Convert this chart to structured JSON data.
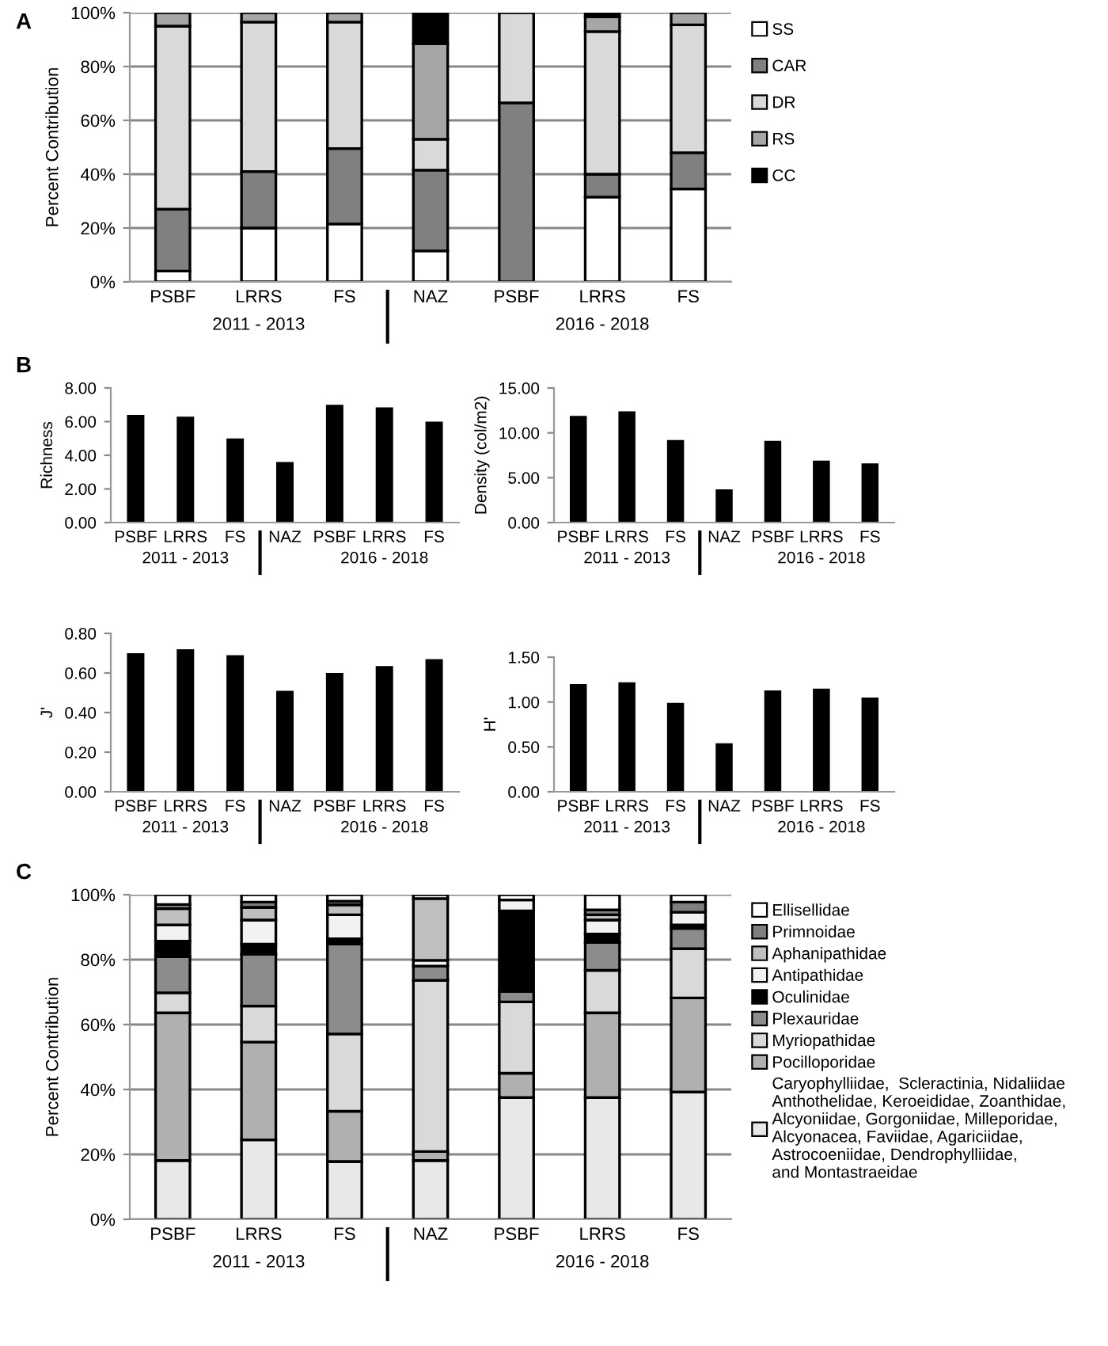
{
  "chart_data": [
    {
      "type": "bar",
      "title": "A",
      "ylabel": "Percent Contribution",
      "stacked": true,
      "grid": "y",
      "legend": "right",
      "categories": [
        "PSBF",
        "LRRS",
        "FS",
        "NAZ",
        "PSBF",
        "LRRS",
        "FS"
      ],
      "annotations": [
        "2011 - 2013",
        "2016 - 2018"
      ],
      "ylim": [
        0,
        100
      ],
      "yticks": [
        {
          "value": 0,
          "label": "0%"
        },
        {
          "value": 20,
          "label": "20%"
        },
        {
          "value": 40,
          "label": "40%"
        },
        {
          "value": 60,
          "label": "60%"
        },
        {
          "value": 80,
          "label": "80%"
        },
        {
          "value": 100,
          "label": "100%"
        }
      ],
      "series": [
        {
          "name": "SS",
          "color": "#ffffff",
          "values": [
            4,
            20,
            21.5,
            11.5,
            null,
            31.5,
            34.5
          ]
        },
        {
          "name": "CAR",
          "color": "#808080",
          "values": [
            23,
            21,
            28,
            30,
            66.5,
            8.5,
            13.5
          ]
        },
        {
          "name": "DR",
          "color": "#d9d9d9",
          "values": [
            68,
            55.5,
            47,
            11.5,
            33.5,
            53,
            47.5
          ]
        },
        {
          "name": "RS",
          "color": "#a6a6a6",
          "values": [
            5,
            3.5,
            3.5,
            35.5,
            null,
            5.5,
            4.5
          ]
        },
        {
          "name": "CC",
          "color": "#000000",
          "values": [
            null,
            null,
            null,
            11.5,
            null,
            1.5,
            null
          ]
        }
      ]
    },
    {
      "type": "bar",
      "title": "B",
      "ylabel": "Richness",
      "categories": [
        "PSBF",
        "LRRS",
        "FS",
        "NAZ",
        "PSBF",
        "LRRS",
        "FS"
      ],
      "annotations": [
        "2011 - 2013",
        "2016 - 2018"
      ],
      "ylim": [
        0,
        8
      ],
      "yticks": [
        {
          "value": 0,
          "label": "0.00"
        },
        {
          "value": 2,
          "label": "2.00"
        },
        {
          "value": 4,
          "label": "4.00"
        },
        {
          "value": 6,
          "label": "6.00"
        },
        {
          "value": 8,
          "label": "8.00"
        }
      ],
      "color": "#000000",
      "values": [
        6.4,
        6.3,
        5.0,
        3.6,
        7.0,
        6.85,
        6.0
      ]
    },
    {
      "type": "bar",
      "ylabel": "Density (col/m2)",
      "categories": [
        "PSBF",
        "LRRS",
        "FS",
        "NAZ",
        "PSBF",
        "LRRS",
        "FS"
      ],
      "annotations": [
        "2011 - 2013",
        "2016 - 2018"
      ],
      "ylim": [
        0,
        15
      ],
      "yticks": [
        {
          "value": 0,
          "label": "0.00"
        },
        {
          "value": 5,
          "label": "5.00"
        },
        {
          "value": 10,
          "label": "10.00"
        },
        {
          "value": 15,
          "label": "15.00"
        }
      ],
      "color": "#000000",
      "values": [
        11.9,
        12.4,
        9.2,
        3.7,
        9.1,
        6.9,
        6.6
      ]
    },
    {
      "type": "bar",
      "ylabel": "J'",
      "categories": [
        "PSBF",
        "LRRS",
        "FS",
        "NAZ",
        "PSBF",
        "LRRS",
        "FS"
      ],
      "annotations": [
        "2011 - 2013",
        "2016 - 2018"
      ],
      "ylim": [
        0,
        0.8
      ],
      "yticks": [
        {
          "value": 0,
          "label": "0.00"
        },
        {
          "value": 0.2,
          "label": "0.20"
        },
        {
          "value": 0.4,
          "label": "0.40"
        },
        {
          "value": 0.6,
          "label": "0.60"
        },
        {
          "value": 0.8,
          "label": "0.80"
        }
      ],
      "color": "#000000",
      "values": [
        0.7,
        0.72,
        0.69,
        0.51,
        0.6,
        0.635,
        0.67
      ]
    },
    {
      "type": "bar",
      "ylabel": "H'",
      "categories": [
        "PSBF",
        "LRRS",
        "FS",
        "NAZ",
        "PSBF",
        "LRRS",
        "FS"
      ],
      "annotations": [
        "2011 - 2013",
        "2016 - 2018"
      ],
      "ylim": [
        0,
        1.5
      ],
      "yticks": [
        {
          "value": 0,
          "label": "0.00"
        },
        {
          "value": 0.5,
          "label": "0.50"
        },
        {
          "value": 1.0,
          "label": "1.00"
        },
        {
          "value": 1.5,
          "label": "1.50"
        }
      ],
      "color": "#000000",
      "values": [
        1.2,
        1.22,
        0.99,
        0.54,
        1.13,
        1.15,
        1.05
      ]
    },
    {
      "type": "bar",
      "title": "C",
      "ylabel": "Percent Contribution",
      "stacked": true,
      "grid": "y",
      "legend": "right",
      "categories": [
        "PSBF",
        "LRRS",
        "FS",
        "NAZ",
        "PSBF",
        "LRRS",
        "FS"
      ],
      "annotations": [
        "2011 - 2013",
        "2016 - 2018"
      ],
      "ylim": [
        0,
        100
      ],
      "yticks": [
        {
          "value": 0,
          "label": "0%"
        },
        {
          "value": 20,
          "label": "20%"
        },
        {
          "value": 40,
          "label": "40%"
        },
        {
          "value": 60,
          "label": "60%"
        },
        {
          "value": 80,
          "label": "80%"
        },
        {
          "value": 100,
          "label": "100%"
        }
      ],
      "series": [
        {
          "name": "Caryophylliidae,  Scleractinia, Nidaliidae\nAnthothelidae, Keroeididae, Zoanthidae,\nAlcyoniidae, Gorgoniidae, Milleporidae,\nAlcyonacea, Faviidae, Agariciidae,\nAstrocoeniidae, Dendrophylliidae,\nand Montastraeidae",
          "color": "#e8e8e8",
          "values": [
            18.1,
            24.5,
            17.8,
            18.1,
            37.5,
            37.5,
            39.2
          ]
        },
        {
          "name": "Pocilloporidae",
          "color": "#b0b0b0",
          "values": [
            45.5,
            30.1,
            15.5,
            2.8,
            7.5,
            26.1,
            29
          ]
        },
        {
          "name": "Myriopathidae",
          "color": "#d9d9d9",
          "values": [
            6.2,
            11.1,
            23.8,
            52.7,
            22,
            13.1,
            15.2
          ]
        },
        {
          "name": "Plexauridae",
          "color": "#8c8c8c",
          "values": [
            11.1,
            16,
            27.7,
            4.4,
            3.2,
            8.6,
            6.2
          ]
        },
        {
          "name": "Oculinidae",
          "color": "#000000",
          "values": [
            4.8,
            3.1,
            1.6,
            null,
            24.8,
            2.6,
            1.1
          ]
        },
        {
          "name": "Antipathidae",
          "color": "#f2f2f2",
          "values": [
            5,
            7.4,
            7.4,
            1.8,
            3.4,
            4.3,
            3.9
          ]
        },
        {
          "name": "Aphanipathidae",
          "color": "#bfbfbf",
          "values": [
            5,
            3.9,
            3.1,
            19,
            null,
            1.6,
            null
          ]
        },
        {
          "name": "Primnoidae",
          "color": "#7f7f7f",
          "values": [
            1.3,
            1.6,
            1.1,
            null,
            null,
            1.5,
            3.1
          ]
        },
        {
          "name": "Ellisellidae",
          "color": "#ffffff",
          "values": [
            3,
            2.3,
            2,
            1.2,
            1.6,
            4.7,
            2.3
          ]
        }
      ]
    }
  ]
}
